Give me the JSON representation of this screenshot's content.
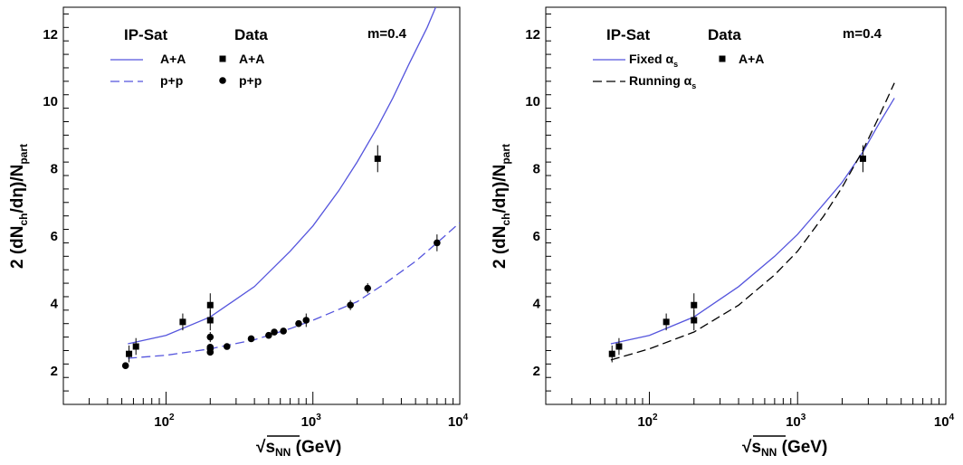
{
  "colors": {
    "model_line": "#5555dd",
    "running_line": "#000000",
    "data_marker": "#000000"
  },
  "chart_data": [
    {
      "type": "line",
      "x_scale": "log",
      "xlim": [
        20,
        10000
      ],
      "ylim": [
        1,
        12.8
      ],
      "xlabel_prefix": "√",
      "xlabel_var": "s",
      "xlabel_sub": "NN",
      "xlabel_unit": " (GeV)",
      "ylabel_main": "2 (dN",
      "ylabel_sub1": "ch",
      "ylabel_mid": "/dη)/N",
      "ylabel_sub2": "part",
      "x_ticks": [
        {
          "base": "10",
          "exp": "2",
          "value": 100
        },
        {
          "base": "10",
          "exp": "3",
          "value": 1000
        },
        {
          "base": "10",
          "exp": "4",
          "value": 10000
        }
      ],
      "y_ticks": [
        {
          "label": "2",
          "value": 2
        },
        {
          "label": "4",
          "value": 4
        },
        {
          "label": "6",
          "value": 6
        },
        {
          "label": "8",
          "value": 8
        },
        {
          "label": "10",
          "value": 10
        },
        {
          "label": "12",
          "value": 12
        }
      ],
      "legend_title_model": "IP-Sat",
      "legend_title_data": "Data",
      "annotation": "m=0.4",
      "series": [
        {
          "name": "A+A",
          "kind": "curve",
          "style": "solid",
          "color": "#5555dd",
          "x": [
            55,
            100,
            200,
            400,
            700,
            1000,
            1500,
            2000,
            2760,
            3500,
            4500,
            6000,
            7500
          ],
          "y": [
            2.8,
            3.05,
            3.6,
            4.5,
            5.55,
            6.3,
            7.35,
            8.2,
            9.25,
            10.1,
            11.1,
            12.2,
            13.2
          ]
        },
        {
          "name": "p+p",
          "kind": "curve",
          "style": "dashed",
          "color": "#5555dd",
          "x": [
            55,
            100,
            200,
            400,
            700,
            1000,
            2000,
            3000,
            5000,
            7000,
            10000
          ],
          "y": [
            2.37,
            2.46,
            2.65,
            2.92,
            3.25,
            3.5,
            4.05,
            4.55,
            5.25,
            5.8,
            6.4
          ]
        },
        {
          "name": "A+A",
          "kind": "points",
          "marker": "square",
          "x": [
            56,
            62.4,
            130,
            200,
            200,
            2760
          ],
          "y": [
            2.5,
            2.72,
            3.45,
            3.5,
            3.95,
            8.3
          ],
          "err": [
            0.25,
            0.25,
            0.25,
            0.3,
            0.35,
            0.4
          ]
        },
        {
          "name": "p+p",
          "kind": "points",
          "marker": "circle",
          "x": [
            53,
            200,
            200,
            200,
            200,
            260,
            380,
            500,
            546,
            630,
            800,
            900,
            1800,
            2360,
            7000
          ],
          "y": [
            2.15,
            2.55,
            2.65,
            2.7,
            3.0,
            2.72,
            2.95,
            3.05,
            3.15,
            3.18,
            3.4,
            3.5,
            3.95,
            4.45,
            5.8
          ],
          "err": [
            0,
            0,
            0,
            0,
            0.15,
            0,
            0,
            0,
            0,
            0,
            0.1,
            0.2,
            0.15,
            0.15,
            0.25
          ]
        }
      ]
    },
    {
      "type": "line",
      "x_scale": "log",
      "xlim": [
        20,
        10000
      ],
      "ylim": [
        1,
        12.8
      ],
      "xlabel_prefix": "√",
      "xlabel_var": "s",
      "xlabel_sub": "NN",
      "xlabel_unit": " (GeV)",
      "ylabel_main": "2 (dN",
      "ylabel_sub1": "ch",
      "ylabel_mid": "/dη)/N",
      "ylabel_sub2": "part",
      "x_ticks": [
        {
          "base": "10",
          "exp": "2",
          "value": 100
        },
        {
          "base": "10",
          "exp": "3",
          "value": 1000
        },
        {
          "base": "10",
          "exp": "4",
          "value": 10000
        }
      ],
      "y_ticks": [
        {
          "label": "2",
          "value": 2
        },
        {
          "label": "4",
          "value": 4
        },
        {
          "label": "6",
          "value": 6
        },
        {
          "label": "8",
          "value": 8
        },
        {
          "label": "10",
          "value": 10
        },
        {
          "label": "12",
          "value": 12
        }
      ],
      "legend_title_model": "IP-Sat",
      "legend_title_data": "Data",
      "annotation": "m=0.4",
      "series": [
        {
          "name": "Fixed α",
          "name_sub": "s",
          "kind": "curve",
          "style": "solid",
          "color": "#5555dd",
          "x": [
            55,
            100,
            200,
            400,
            700,
            1000,
            1500,
            2000,
            2760,
            3500,
            4500
          ],
          "y": [
            2.8,
            3.05,
            3.6,
            4.5,
            5.4,
            6.05,
            6.95,
            7.6,
            8.5,
            9.3,
            10.1
          ]
        },
        {
          "name": "Running α",
          "name_sub": "s",
          "kind": "curve",
          "style": "dashed",
          "color": "#000000",
          "x": [
            55,
            100,
            200,
            400,
            700,
            1000,
            1500,
            2000,
            2760,
            3500,
            4500
          ],
          "y": [
            2.32,
            2.65,
            3.15,
            3.95,
            4.85,
            5.55,
            6.6,
            7.45,
            8.55,
            9.5,
            10.55
          ]
        },
        {
          "name": "A+A",
          "kind": "points",
          "marker": "square",
          "x": [
            56,
            62.4,
            130,
            200,
            200,
            2760
          ],
          "y": [
            2.5,
            2.72,
            3.45,
            3.5,
            3.95,
            8.3
          ],
          "err": [
            0.25,
            0.25,
            0.25,
            0.3,
            0.35,
            0.4
          ]
        }
      ]
    }
  ]
}
